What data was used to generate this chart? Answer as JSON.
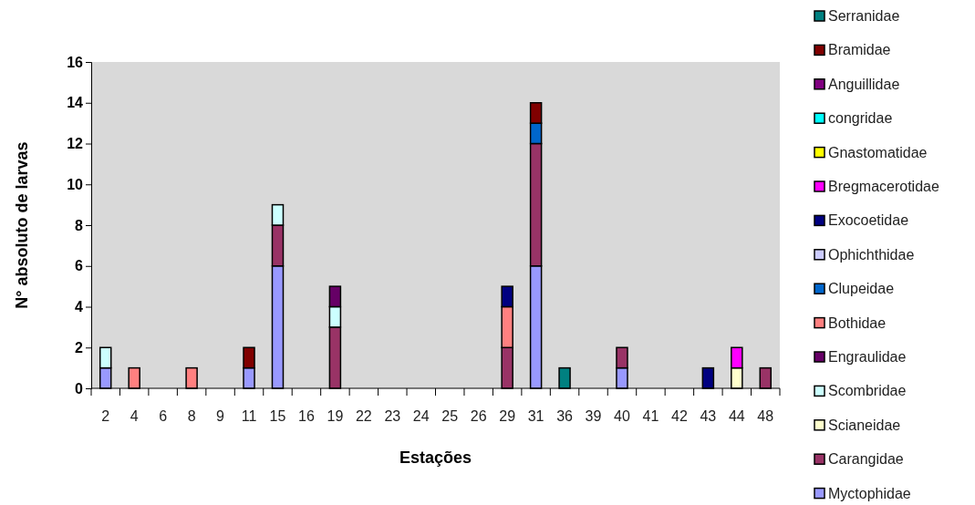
{
  "chart_data": {
    "type": "bar",
    "stacked": true,
    "xlabel": "Estações",
    "ylabel": "N° absoluto de larvas",
    "categories": [
      "2",
      "4",
      "6",
      "8",
      "9",
      "11",
      "15",
      "16",
      "19",
      "22",
      "23",
      "24",
      "25",
      "26",
      "29",
      "31",
      "36",
      "39",
      "40",
      "41",
      "42",
      "43",
      "44",
      "48"
    ],
    "ylim": [
      0,
      16
    ],
    "yticks": [
      0,
      2,
      4,
      6,
      8,
      10,
      12,
      14,
      16
    ],
    "grid": false,
    "legend": "right",
    "series": [
      {
        "name": "Myctophidae",
        "color": "#9999ff",
        "values": [
          1,
          null,
          null,
          null,
          null,
          1,
          6,
          null,
          null,
          null,
          null,
          null,
          null,
          null,
          null,
          6,
          null,
          null,
          1,
          null,
          null,
          null,
          null,
          null
        ]
      },
      {
        "name": "Carangidae",
        "color": "#993366",
        "values": [
          null,
          null,
          null,
          null,
          null,
          null,
          2,
          null,
          3,
          null,
          null,
          null,
          null,
          null,
          2,
          6,
          null,
          null,
          1,
          null,
          null,
          null,
          null,
          1
        ]
      },
      {
        "name": "Scianeidae",
        "color": "#ffffcc",
        "values": [
          null,
          null,
          null,
          null,
          null,
          null,
          null,
          null,
          null,
          null,
          null,
          null,
          null,
          null,
          null,
          null,
          null,
          null,
          null,
          null,
          null,
          null,
          1,
          null
        ]
      },
      {
        "name": "Scombridae",
        "color": "#ccffff",
        "values": [
          1,
          null,
          null,
          null,
          null,
          null,
          1,
          null,
          1,
          null,
          null,
          null,
          null,
          null,
          null,
          null,
          null,
          null,
          null,
          null,
          null,
          null,
          null,
          null
        ]
      },
      {
        "name": "Engraulidae",
        "color": "#660066",
        "values": [
          null,
          null,
          null,
          null,
          null,
          null,
          null,
          null,
          1,
          null,
          null,
          null,
          null,
          null,
          null,
          null,
          null,
          null,
          null,
          null,
          null,
          null,
          null,
          null
        ]
      },
      {
        "name": "Bothidae",
        "color": "#ff8080",
        "values": [
          null,
          1,
          null,
          1,
          null,
          null,
          null,
          null,
          null,
          null,
          null,
          null,
          null,
          null,
          2,
          null,
          null,
          null,
          null,
          null,
          null,
          null,
          null,
          null
        ]
      },
      {
        "name": "Clupeidae",
        "color": "#0066cc",
        "values": [
          null,
          null,
          null,
          null,
          null,
          null,
          null,
          null,
          null,
          null,
          null,
          null,
          null,
          null,
          null,
          1,
          null,
          null,
          null,
          null,
          null,
          null,
          null,
          null
        ]
      },
      {
        "name": "Ophichthidae",
        "color": "#ccccff",
        "values": [
          null,
          null,
          null,
          null,
          null,
          null,
          null,
          null,
          null,
          null,
          null,
          null,
          null,
          null,
          null,
          null,
          null,
          null,
          null,
          null,
          null,
          null,
          null,
          null
        ]
      },
      {
        "name": "Exocoetidae",
        "color": "#000080",
        "values": [
          null,
          null,
          null,
          null,
          null,
          null,
          null,
          null,
          null,
          null,
          null,
          null,
          null,
          null,
          1,
          null,
          null,
          null,
          null,
          null,
          null,
          1,
          null,
          null
        ]
      },
      {
        "name": "Bregmacerotidae",
        "color": "#ff00ff",
        "values": [
          null,
          null,
          null,
          null,
          null,
          null,
          null,
          null,
          null,
          null,
          null,
          null,
          null,
          null,
          null,
          null,
          null,
          null,
          null,
          null,
          null,
          null,
          1,
          null
        ]
      },
      {
        "name": "Gnastomatidae",
        "color": "#ffff00",
        "values": [
          null,
          null,
          null,
          null,
          null,
          null,
          null,
          null,
          null,
          null,
          null,
          null,
          null,
          null,
          null,
          null,
          null,
          null,
          null,
          null,
          null,
          null,
          null,
          null
        ]
      },
      {
        "name": "congridae",
        "color": "#00ffff",
        "values": [
          null,
          null,
          null,
          null,
          null,
          null,
          null,
          null,
          null,
          null,
          null,
          null,
          null,
          null,
          null,
          null,
          null,
          null,
          null,
          null,
          null,
          null,
          null,
          null
        ]
      },
      {
        "name": "Anguillidae",
        "color": "#800080",
        "values": [
          null,
          null,
          null,
          null,
          null,
          null,
          null,
          null,
          null,
          null,
          null,
          null,
          null,
          null,
          null,
          null,
          null,
          null,
          null,
          null,
          null,
          null,
          null,
          null
        ]
      },
      {
        "name": "Bramidae",
        "color": "#800000",
        "values": [
          null,
          null,
          null,
          null,
          null,
          1,
          null,
          null,
          null,
          null,
          null,
          null,
          null,
          null,
          null,
          1,
          null,
          null,
          null,
          null,
          null,
          null,
          null,
          null
        ]
      },
      {
        "name": "Serranidae",
        "color": "#008080",
        "values": [
          null,
          null,
          null,
          null,
          null,
          null,
          null,
          null,
          null,
          null,
          null,
          null,
          null,
          null,
          null,
          null,
          1,
          null,
          null,
          null,
          null,
          null,
          null,
          null
        ]
      }
    ]
  }
}
